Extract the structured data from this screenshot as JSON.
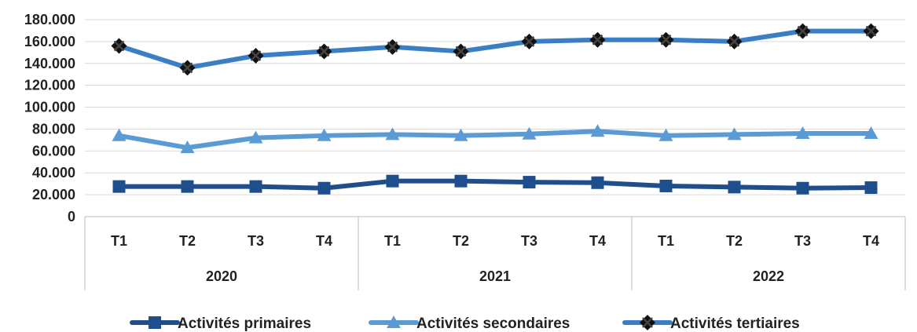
{
  "chart_data": {
    "type": "line",
    "title": "",
    "xlabel": "",
    "ylabel": "",
    "ylim": [
      0,
      180000
    ],
    "yticks": [
      0,
      20000,
      40000,
      60000,
      80000,
      100000,
      120000,
      140000,
      160000,
      180000
    ],
    "ytick_labels": [
      "0",
      "20.000",
      "40.000",
      "60.000",
      "80.000",
      "100.000",
      "120.000",
      "140.000",
      "160.000",
      "180.000"
    ],
    "grid": true,
    "legend_position": "bottom",
    "categories": [
      "T1",
      "T2",
      "T3",
      "T4",
      "T1",
      "T2",
      "T3",
      "T4",
      "T1",
      "T2",
      "T3",
      "T4"
    ],
    "groups": [
      {
        "label": "2020",
        "count": 4
      },
      {
        "label": "2021",
        "count": 4
      },
      {
        "label": "2022",
        "count": 4
      }
    ],
    "series": [
      {
        "name": "Activités primaires",
        "color": "#1f4e8c",
        "marker": "square",
        "values": [
          27500,
          27500,
          27500,
          26000,
          32500,
          32500,
          31500,
          31000,
          28000,
          27000,
          26000,
          26500
        ]
      },
      {
        "name": "Activités secondaires",
        "color": "#5b9bd5",
        "marker": "triangle",
        "values": [
          74000,
          63000,
          72000,
          74000,
          75000,
          74000,
          75500,
          78000,
          74000,
          75000,
          76000,
          76000
        ]
      },
      {
        "name": "Activités tertiaires",
        "color": "#3a7fc4",
        "marker": "diamond-x",
        "values": [
          156000,
          136000,
          147000,
          151000,
          155000,
          151000,
          160000,
          161500,
          161500,
          160000,
          169500,
          169500
        ]
      }
    ]
  }
}
